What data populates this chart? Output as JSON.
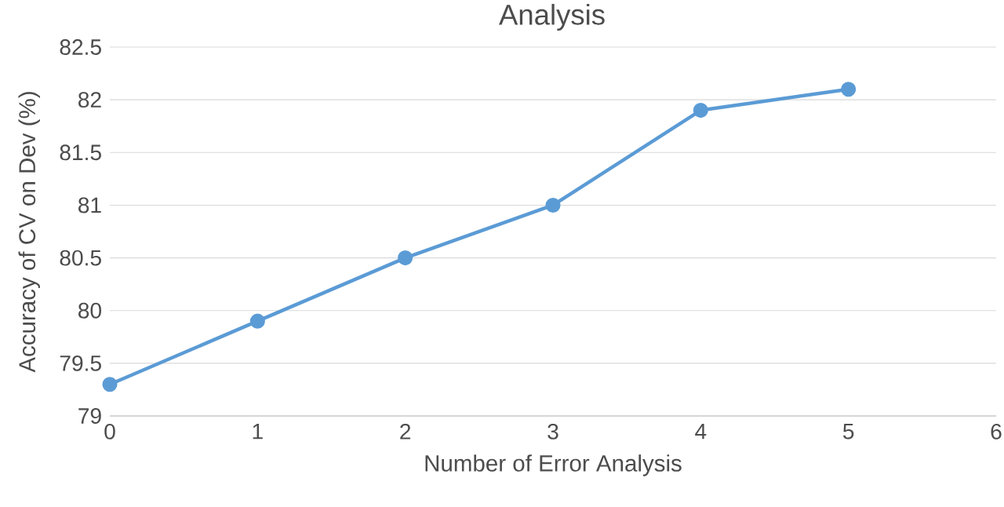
{
  "chart_data": {
    "type": "line",
    "title": "Analysis",
    "xlabel": "Number of Error Analysis",
    "ylabel": "Accuracy of CV on Dev (%)",
    "x": [
      0,
      1,
      2,
      3,
      4,
      5
    ],
    "series": [
      {
        "color": "#5b9bd5",
        "values": [
          79.3,
          79.9,
          80.5,
          81.0,
          81.9,
          82.1
        ]
      }
    ],
    "xlim": [
      0,
      6
    ],
    "xticks": [
      0,
      1,
      2,
      3,
      4,
      5,
      6
    ],
    "ylim": [
      79,
      82.5
    ],
    "yticks": [
      79,
      79.5,
      80,
      80.5,
      81,
      81.5,
      82,
      82.5
    ],
    "grid": "y",
    "marker": "circle",
    "line_style": "solid"
  }
}
